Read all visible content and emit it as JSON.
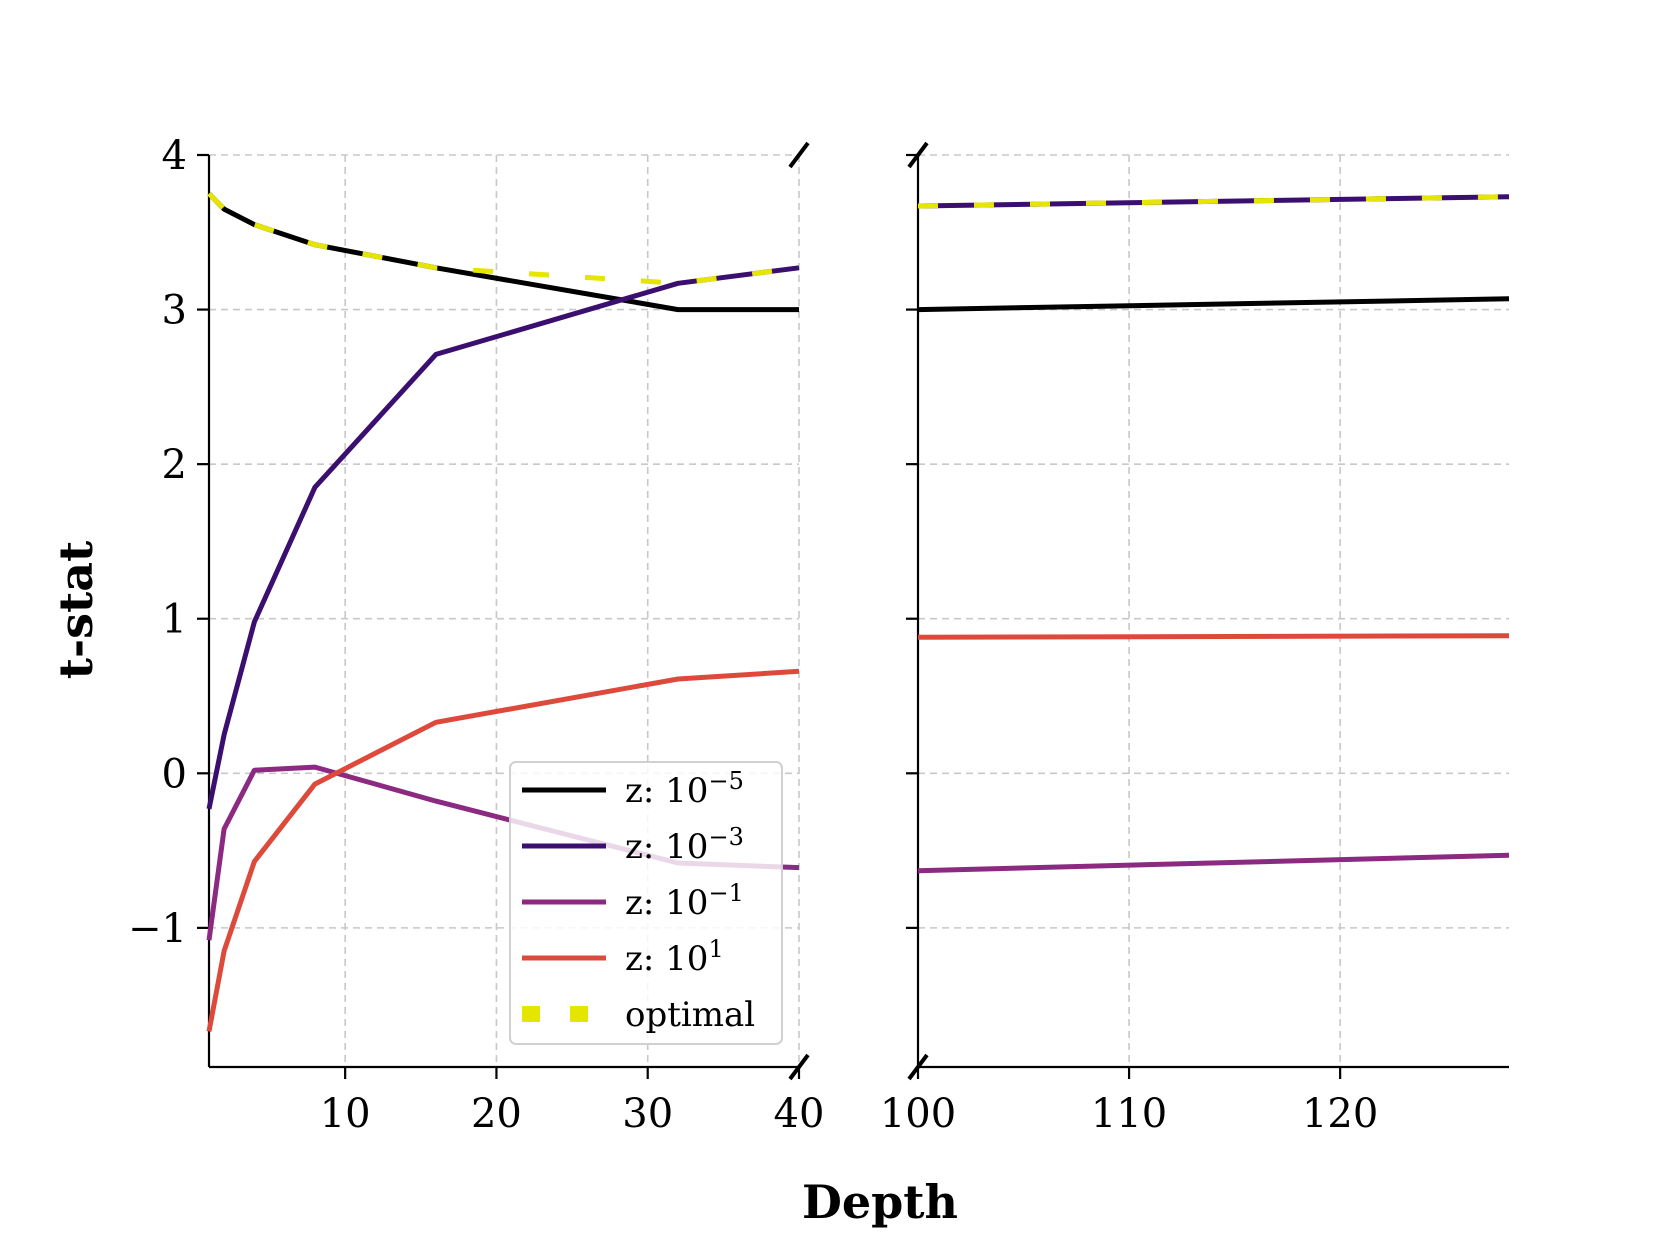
{
  "chart_data": {
    "type": "line",
    "layout": "broken-x-axis",
    "xlabel": "Depth",
    "ylabel": "t-stat",
    "ylim": [
      -1.9,
      4.0
    ],
    "yticks": [
      4,
      3,
      2,
      1,
      0,
      -1
    ],
    "ytick_labels": [
      "4",
      "3",
      "2",
      "1",
      "0",
      "−1"
    ],
    "panels": [
      {
        "xlim": [
          1,
          40
        ],
        "xticks": [
          10,
          20,
          30,
          40
        ],
        "xtick_labels": [
          "10",
          "20",
          "30",
          "40"
        ]
      },
      {
        "xlim": [
          100,
          128
        ],
        "xticks": [
          100,
          110,
          120
        ],
        "xtick_labels": [
          "100",
          "110",
          "120"
        ]
      }
    ],
    "grid": true,
    "legend_position": "lower-right of left panel",
    "series": [
      {
        "key": "z5",
        "name": "z: 10⁻⁵",
        "label_base": "z: 10",
        "label_exp": "−5",
        "color": "#000000",
        "style": "solid",
        "x": [
          1,
          2,
          4,
          8,
          16,
          32,
          40,
          100,
          128
        ],
        "y": [
          3.75,
          3.65,
          3.55,
          3.42,
          3.27,
          3.0,
          3.0,
          3.0,
          3.07
        ]
      },
      {
        "key": "z3",
        "name": "z: 10⁻³",
        "label_base": "z: 10",
        "label_exp": "−3",
        "color": "#3b0f70",
        "style": "solid",
        "x": [
          1,
          2,
          4,
          8,
          16,
          32,
          40,
          100,
          128
        ],
        "y": [
          -0.23,
          0.25,
          0.98,
          1.85,
          2.71,
          3.17,
          3.27,
          3.67,
          3.73
        ]
      },
      {
        "key": "z1m",
        "name": "z: 10⁻¹",
        "label_base": "z: 10",
        "label_exp": "−1",
        "color": "#8c2981",
        "style": "solid",
        "x": [
          1,
          2,
          4,
          8,
          16,
          32,
          40,
          100,
          128
        ],
        "y": [
          -1.08,
          -0.36,
          0.02,
          0.04,
          -0.18,
          -0.58,
          -0.61,
          -0.63,
          -0.53
        ]
      },
      {
        "key": "z1p",
        "name": "z: 10¹",
        "label_base": "z: 10",
        "label_exp": "1",
        "color": "#dd4a3c",
        "style": "solid",
        "x": [
          1,
          2,
          4,
          8,
          16,
          32,
          40,
          100,
          128
        ],
        "y": [
          -1.67,
          -1.15,
          -0.57,
          -0.07,
          0.33,
          0.61,
          0.66,
          0.88,
          0.89
        ]
      },
      {
        "key": "optimal",
        "name": "optimal",
        "label_base": "optimal",
        "label_exp": "",
        "color": "#e5e500",
        "style": "dotted",
        "x": [
          1,
          2,
          4,
          8,
          16,
          32,
          40,
          100,
          128
        ],
        "y": [
          3.75,
          3.65,
          3.55,
          3.42,
          3.27,
          3.17,
          3.27,
          3.67,
          3.73
        ]
      }
    ]
  }
}
